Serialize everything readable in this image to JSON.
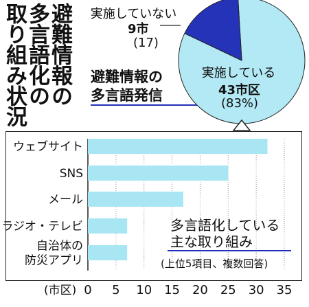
{
  "title_lines": [
    "多避",
    "言難",
    "語情",
    "化報",
    "の"
  ],
  "title_col1": "避難情報の",
  "title_col2": "多言語化の",
  "title_col3": "取り組み状況",
  "subtitle": [
    "避難情報の",
    "多言語発信"
  ],
  "pie": {
    "colors": {
      "implemented": "#b3e9f4",
      "not_implemented": "#2533b8"
    },
    "implemented": {
      "label": "実施している",
      "count": "43市区",
      "pct": "(83%)",
      "value": 83
    },
    "not_implemented": {
      "label": "実施していない",
      "count": "9市",
      "pct": "(17)",
      "value": 17
    }
  },
  "chart_data": {
    "type": "bar",
    "orientation": "horizontal",
    "categories": [
      "ウェブサイト",
      "SNS",
      "メール",
      "ラジオ・テレビ",
      "自治体の防災アプリ"
    ],
    "category_lines": [
      [
        "ウェブサイト"
      ],
      [
        "SNS"
      ],
      [
        "メール"
      ],
      [
        "ラジオ・テレビ"
      ],
      [
        "自治体の",
        "防災アプリ"
      ]
    ],
    "values": [
      32,
      25,
      17,
      7,
      7
    ],
    "xlim": [
      0,
      35
    ],
    "xticks": [
      "0",
      "5",
      "10",
      "15",
      "20",
      "25",
      "30",
      "35"
    ],
    "xunit": "(市区)",
    "bar_color": "#a8e6f3",
    "grid": true,
    "title": [
      "多言語化している",
      "主な取り組み"
    ],
    "note": "(上位5項目、複数回答)"
  }
}
